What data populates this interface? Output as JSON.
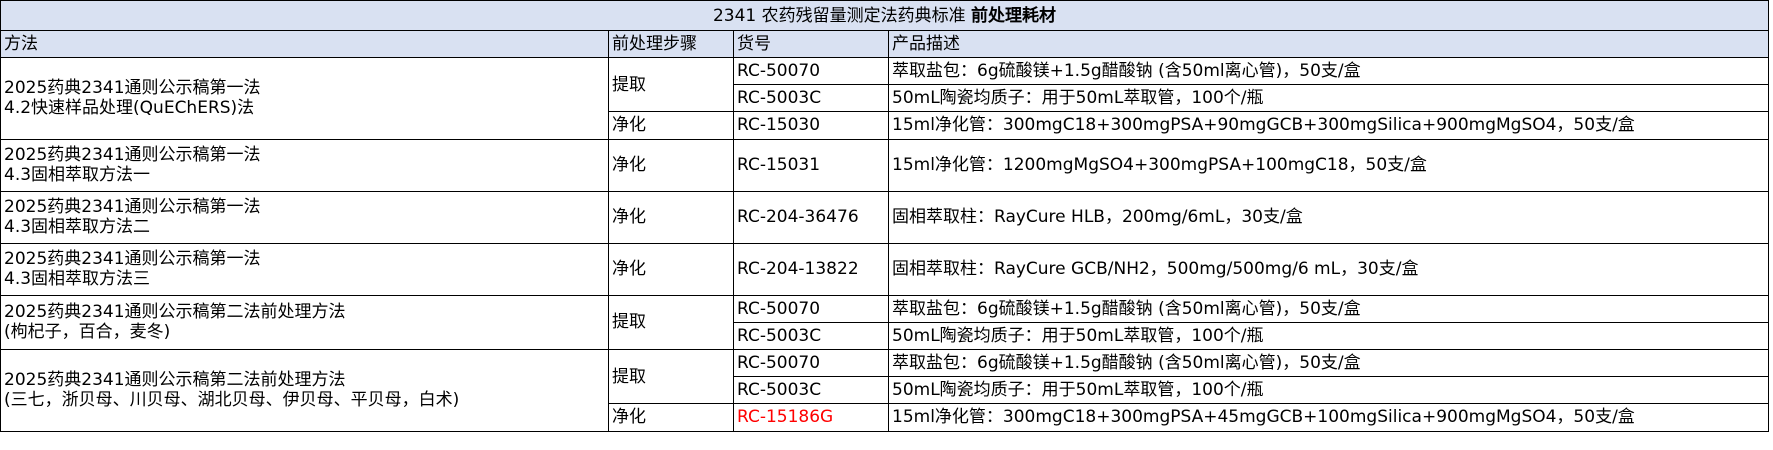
{
  "title": {
    "normal": "2341 农药残留量测定法药典标准 ",
    "bold": "前处理耗材"
  },
  "headers": [
    "方法",
    "前处理步骤",
    "货号",
    "产品描述"
  ],
  "colors": {
    "header_bg": "#D9E1F2",
    "highlight": "#FF0000"
  },
  "groups": [
    {
      "method": [
        "2025药典2341通则公示稿第一法",
        "4.2快速样品处理(QuEChERS)法"
      ],
      "steps": [
        {
          "step": "提取",
          "items": [
            {
              "code": "RC-50070",
              "desc": "萃取盐包：6g硫酸镁+1.5g醋酸钠 (含50ml离心管)，50支/盒"
            },
            {
              "code": "RC-5003C",
              "desc": "50mL陶瓷均质子：用于50mL萃取管，100个/瓶"
            }
          ]
        },
        {
          "step": "净化",
          "items": [
            {
              "code": "RC-15030",
              "desc": "15ml净化管：300mgC18+300mgPSA+90mgGCB+300mgSilica+900mgMgSO4，50支/盒"
            }
          ]
        }
      ]
    },
    {
      "method": [
        "2025药典2341通则公示稿第一法",
        "4.3固相萃取方法一"
      ],
      "steps": [
        {
          "step": "净化",
          "items": [
            {
              "code": "RC-15031",
              "desc": "15ml净化管：1200mgMgSO4+300mgPSA+100mgC18，50支/盒"
            }
          ]
        }
      ]
    },
    {
      "method": [
        "2025药典2341通则公示稿第一法",
        "4.3固相萃取方法二"
      ],
      "steps": [
        {
          "step": "净化",
          "items": [
            {
              "code": "RC-204-36476",
              "desc": "固相萃取柱：RayCure HLB，200mg/6mL，30支/盒"
            }
          ]
        }
      ]
    },
    {
      "method": [
        "2025药典2341通则公示稿第一法",
        "4.3固相萃取方法三"
      ],
      "steps": [
        {
          "step": "净化",
          "items": [
            {
              "code": "RC-204-13822",
              "desc": "固相萃取柱：RayCure GCB/NH2，500mg/500mg/6 mL，30支/盒"
            }
          ]
        }
      ]
    },
    {
      "method": [
        "2025药典2341通则公示稿第二法前处理方法",
        "(枸杞子，百合，麦冬)"
      ],
      "steps": [
        {
          "step": "提取",
          "items": [
            {
              "code": "RC-50070",
              "desc": "萃取盐包：6g硫酸镁+1.5g醋酸钠 (含50ml离心管)，50支/盒"
            },
            {
              "code": "RC-5003C",
              "desc": "50mL陶瓷均质子：用于50mL萃取管，100个/瓶"
            }
          ]
        }
      ]
    },
    {
      "method": [
        "2025药典2341通则公示稿第二法前处理方法",
        "(三七，浙贝母、川贝母、湖北贝母、伊贝母、平贝母，白术)"
      ],
      "steps": [
        {
          "step": "提取",
          "items": [
            {
              "code": "RC-50070",
              "desc": "萃取盐包：6g硫酸镁+1.5g醋酸钠 (含50ml离心管)，50支/盒"
            },
            {
              "code": "RC-5003C",
              "desc": "50mL陶瓷均质子：用于50mL萃取管，100个/瓶"
            }
          ]
        },
        {
          "step": "净化",
          "items": [
            {
              "code": "RC-15186G",
              "desc": "15ml净化管：300mgC18+300mgPSA+45mgGCB+100mgSilica+900mgMgSO4，50支/盒",
              "highlight": true
            }
          ]
        }
      ]
    }
  ]
}
